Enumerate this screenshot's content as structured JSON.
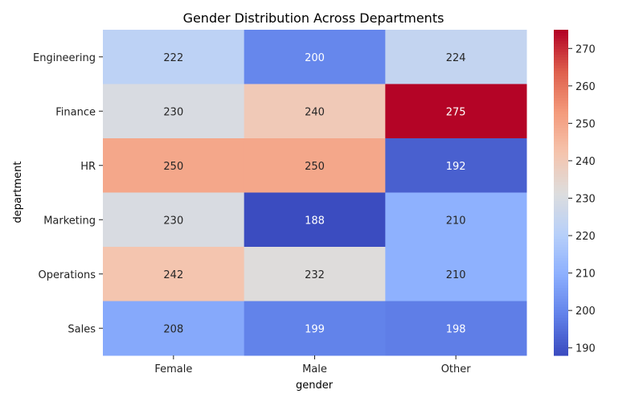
{
  "chart_data": {
    "type": "heatmap",
    "title": "Gender Distribution Across Departments",
    "xlabel": "gender",
    "ylabel": "department",
    "x_categories": [
      "Female",
      "Male",
      "Other"
    ],
    "y_categories": [
      "Engineering",
      "Finance",
      "HR",
      "Marketing",
      "Operations",
      "Sales"
    ],
    "values": [
      [
        222,
        200,
        224
      ],
      [
        230,
        240,
        275
      ],
      [
        250,
        250,
        192
      ],
      [
        230,
        188,
        210
      ],
      [
        242,
        232,
        210
      ],
      [
        208,
        199,
        198
      ]
    ],
    "colormap": "coolwarm",
    "color_range": [
      188,
      275
    ],
    "colorbar_ticks": [
      190,
      200,
      210,
      220,
      230,
      240,
      250,
      260,
      270
    ],
    "colors": {
      "low": "#3b4cc0",
      "mid": "#dddddd",
      "high": "#b40426"
    }
  }
}
